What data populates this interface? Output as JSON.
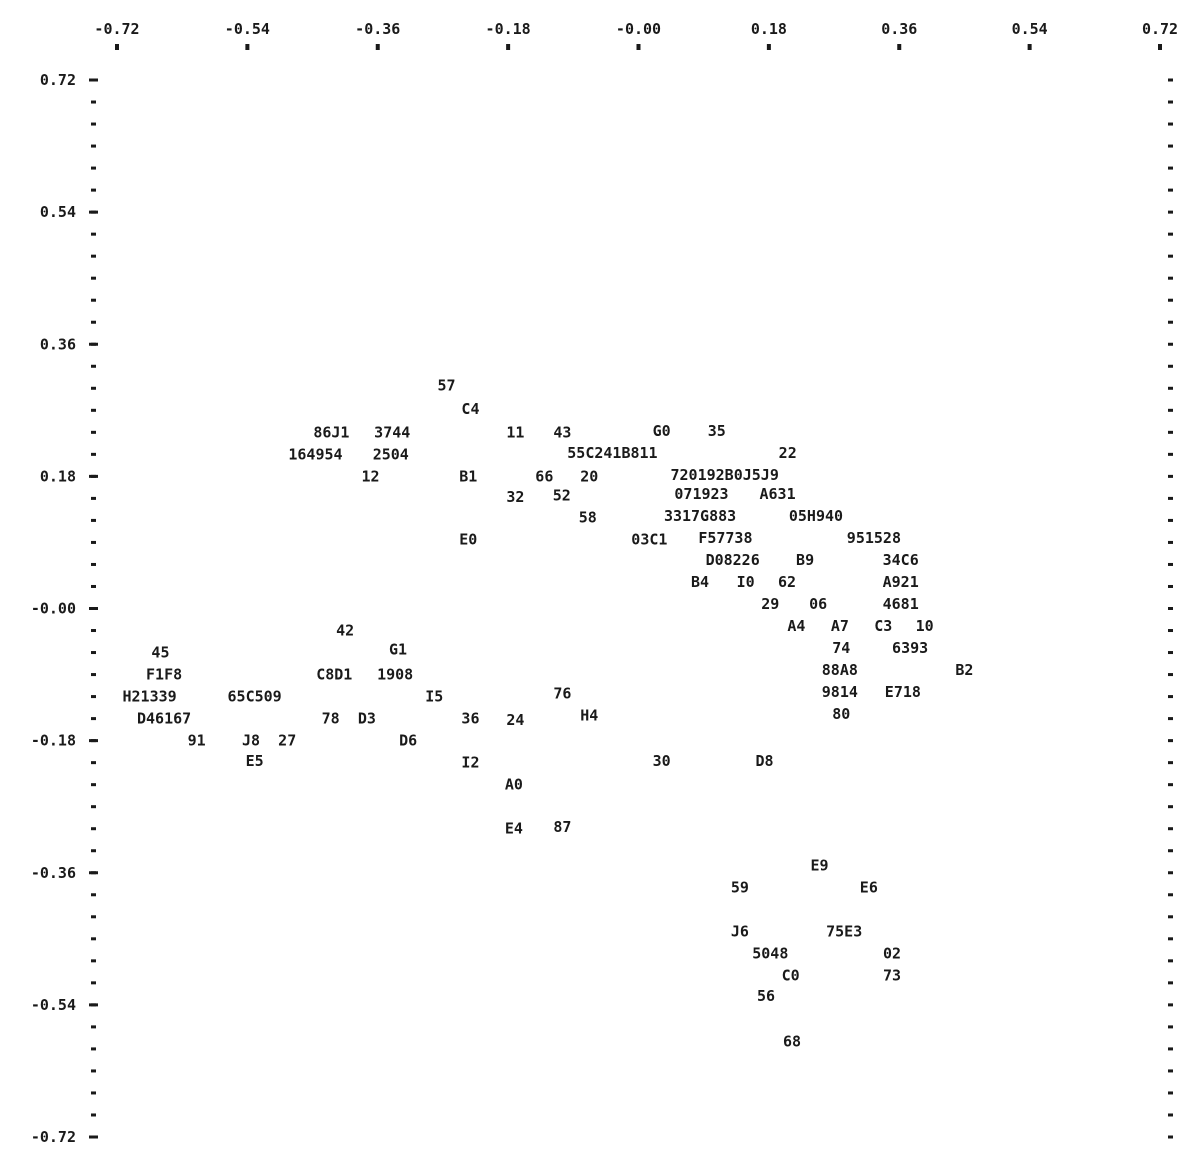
{
  "chart_data": {
    "type": "scatter",
    "title": "",
    "xlabel": "",
    "ylabel": "",
    "xlim": [
      -0.72,
      0.72
    ],
    "ylim": [
      -0.72,
      0.72
    ],
    "grid": false,
    "colors": {
      "ink": "#1a1a1a",
      "background": "#ffffff"
    },
    "x_ticks": [
      {
        "value": -0.72,
        "label": "-0.72"
      },
      {
        "value": -0.54,
        "label": "-0.54"
      },
      {
        "value": -0.36,
        "label": "-0.36"
      },
      {
        "value": -0.18,
        "label": "-0.18"
      },
      {
        "value": 0.0,
        "label": "-0.00"
      },
      {
        "value": 0.18,
        "label": "0.18"
      },
      {
        "value": 0.36,
        "label": "0.36"
      },
      {
        "value": 0.54,
        "label": "0.54"
      },
      {
        "value": 0.72,
        "label": "0.72"
      }
    ],
    "y_ticks": [
      {
        "value": 0.72,
        "label": "0.72"
      },
      {
        "value": 0.54,
        "label": "0.54"
      },
      {
        "value": 0.36,
        "label": "0.36"
      },
      {
        "value": 0.18,
        "label": "0.18"
      },
      {
        "value": 0.0,
        "label": "-0.00"
      },
      {
        "value": -0.18,
        "label": "-0.18"
      },
      {
        "value": -0.36,
        "label": "-0.36"
      },
      {
        "value": -0.54,
        "label": "-0.54"
      },
      {
        "value": -0.72,
        "label": "-0.72"
      }
    ],
    "points": [
      {
        "label": "57",
        "x": -0.265,
        "y": 0.304
      },
      {
        "label": "C4",
        "x": -0.232,
        "y": 0.272
      },
      {
        "label": "86J1",
        "x": -0.424,
        "y": 0.24
      },
      {
        "label": "3744",
        "x": -0.34,
        "y": 0.24
      },
      {
        "label": "11",
        "x": -0.17,
        "y": 0.24
      },
      {
        "label": "43",
        "x": -0.105,
        "y": 0.24
      },
      {
        "label": "G0",
        "x": 0.032,
        "y": 0.242
      },
      {
        "label": "35",
        "x": 0.108,
        "y": 0.242
      },
      {
        "label": "164954",
        "x": -0.446,
        "y": 0.21
      },
      {
        "label": "2504",
        "x": -0.342,
        "y": 0.21
      },
      {
        "label": "55C241B811",
        "x": -0.036,
        "y": 0.212
      },
      {
        "label": "22",
        "x": 0.206,
        "y": 0.212
      },
      {
        "label": "12",
        "x": -0.37,
        "y": 0.18
      },
      {
        "label": "B1",
        "x": -0.235,
        "y": 0.18
      },
      {
        "label": "66",
        "x": -0.13,
        "y": 0.18
      },
      {
        "label": "20",
        "x": -0.068,
        "y": 0.18
      },
      {
        "label": "720192B0J5J9",
        "x": 0.119,
        "y": 0.182
      },
      {
        "label": "32",
        "x": -0.17,
        "y": 0.152
      },
      {
        "label": "52",
        "x": -0.106,
        "y": 0.154
      },
      {
        "label": "071923",
        "x": 0.087,
        "y": 0.156
      },
      {
        "label": "A631",
        "x": 0.192,
        "y": 0.156
      },
      {
        "label": "58",
        "x": -0.07,
        "y": 0.124
      },
      {
        "label": "3317G883",
        "x": 0.085,
        "y": 0.126
      },
      {
        "label": "05H940",
        "x": 0.245,
        "y": 0.126
      },
      {
        "label": "E0",
        "x": -0.235,
        "y": 0.094
      },
      {
        "label": "03C1",
        "x": 0.015,
        "y": 0.094
      },
      {
        "label": "F57738",
        "x": 0.12,
        "y": 0.096
      },
      {
        "label": "951528",
        "x": 0.325,
        "y": 0.096
      },
      {
        "label": "D08226",
        "x": 0.13,
        "y": 0.066
      },
      {
        "label": "B9",
        "x": 0.23,
        "y": 0.066
      },
      {
        "label": "34C6",
        "x": 0.362,
        "y": 0.066
      },
      {
        "label": "B4",
        "x": 0.085,
        "y": 0.036
      },
      {
        "label": "I0",
        "x": 0.148,
        "y": 0.036
      },
      {
        "label": "62",
        "x": 0.205,
        "y": 0.036
      },
      {
        "label": "A921",
        "x": 0.362,
        "y": 0.036
      },
      {
        "label": "29",
        "x": 0.182,
        "y": 0.006
      },
      {
        "label": "06",
        "x": 0.248,
        "y": 0.006
      },
      {
        "label": "4681",
        "x": 0.362,
        "y": 0.006
      },
      {
        "label": "A4",
        "x": 0.218,
        "y": -0.024
      },
      {
        "label": "A7",
        "x": 0.278,
        "y": -0.024
      },
      {
        "label": "C3",
        "x": 0.338,
        "y": -0.024
      },
      {
        "label": "10",
        "x": 0.395,
        "y": -0.024
      },
      {
        "label": "42",
        "x": -0.405,
        "y": -0.03
      },
      {
        "label": "45",
        "x": -0.66,
        "y": -0.06
      },
      {
        "label": "G1",
        "x": -0.332,
        "y": -0.056
      },
      {
        "label": "74",
        "x": 0.28,
        "y": -0.054
      },
      {
        "label": "6393",
        "x": 0.375,
        "y": -0.054
      },
      {
        "label": "F1F8",
        "x": -0.655,
        "y": -0.09
      },
      {
        "label": "C8D1",
        "x": -0.42,
        "y": -0.09
      },
      {
        "label": "1908",
        "x": -0.336,
        "y": -0.09
      },
      {
        "label": "88A8",
        "x": 0.278,
        "y": -0.084
      },
      {
        "label": "B2",
        "x": 0.45,
        "y": -0.084
      },
      {
        "label": "H21339",
        "x": -0.675,
        "y": -0.12
      },
      {
        "label": "65C509",
        "x": -0.53,
        "y": -0.12
      },
      {
        "label": "I5",
        "x": -0.282,
        "y": -0.12
      },
      {
        "label": "76",
        "x": -0.105,
        "y": -0.116
      },
      {
        "label": "9814",
        "x": 0.278,
        "y": -0.114
      },
      {
        "label": "E718",
        "x": 0.365,
        "y": -0.114
      },
      {
        "label": "D46167",
        "x": -0.655,
        "y": -0.15
      },
      {
        "label": "78",
        "x": -0.425,
        "y": -0.15
      },
      {
        "label": "D3",
        "x": -0.375,
        "y": -0.15
      },
      {
        "label": "36",
        "x": -0.232,
        "y": -0.15
      },
      {
        "label": "24",
        "x": -0.17,
        "y": -0.152
      },
      {
        "label": "H4",
        "x": -0.068,
        "y": -0.146
      },
      {
        "label": "80",
        "x": 0.28,
        "y": -0.144
      },
      {
        "label": "91",
        "x": -0.61,
        "y": -0.18
      },
      {
        "label": "J8",
        "x": -0.535,
        "y": -0.18
      },
      {
        "label": "27",
        "x": -0.485,
        "y": -0.18
      },
      {
        "label": "D6",
        "x": -0.318,
        "y": -0.18
      },
      {
        "label": "E5",
        "x": -0.53,
        "y": -0.208
      },
      {
        "label": "I2",
        "x": -0.232,
        "y": -0.21
      },
      {
        "label": "30",
        "x": 0.032,
        "y": -0.208
      },
      {
        "label": "D8",
        "x": 0.174,
        "y": -0.208
      },
      {
        "label": "A0",
        "x": -0.172,
        "y": -0.24
      },
      {
        "label": "E4",
        "x": -0.172,
        "y": -0.3
      },
      {
        "label": "87",
        "x": -0.105,
        "y": -0.298
      },
      {
        "label": "E9",
        "x": 0.25,
        "y": -0.35
      },
      {
        "label": "59",
        "x": 0.14,
        "y": -0.38
      },
      {
        "label": "E6",
        "x": 0.318,
        "y": -0.38
      },
      {
        "label": "J6",
        "x": 0.14,
        "y": -0.44
      },
      {
        "label": "75E3",
        "x": 0.284,
        "y": -0.44
      },
      {
        "label": "5048",
        "x": 0.182,
        "y": -0.47
      },
      {
        "label": "02",
        "x": 0.35,
        "y": -0.47
      },
      {
        "label": "C0",
        "x": 0.21,
        "y": -0.5
      },
      {
        "label": "73",
        "x": 0.35,
        "y": -0.5
      },
      {
        "label": "56",
        "x": 0.176,
        "y": -0.528
      },
      {
        "label": "68",
        "x": 0.212,
        "y": -0.59
      }
    ]
  }
}
